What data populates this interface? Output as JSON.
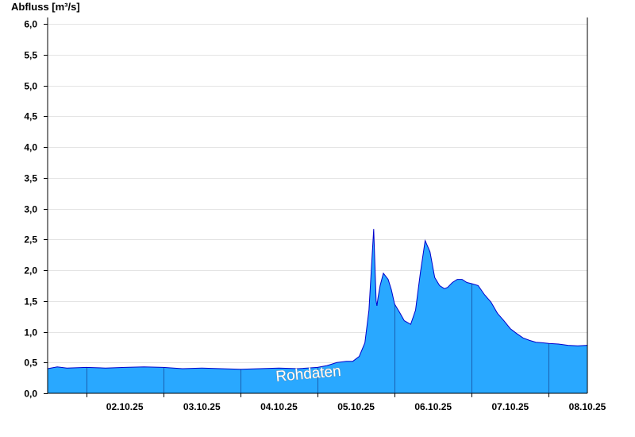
{
  "chart_data": {
    "type": "area",
    "ylabel": "Abfluss [m³/s]",
    "xlabel": "",
    "ylim": [
      0,
      6.0
    ],
    "yticks": [
      "0,0",
      "0,5",
      "1,0",
      "1,5",
      "2,0",
      "2,5",
      "3,0",
      "3,5",
      "4,0",
      "4,5",
      "5,0",
      "5,5",
      "6,0"
    ],
    "ytick_values": [
      0,
      0.5,
      1.0,
      1.5,
      2.0,
      2.5,
      3.0,
      3.5,
      4.0,
      4.5,
      5.0,
      5.5,
      6.0
    ],
    "xlim": [
      "2025-10-01T12:00",
      "2025-10-08T12:00"
    ],
    "xticks": [
      "02.10.25",
      "03.10.25",
      "04.10.25",
      "05.10.25",
      "06.10.25",
      "07.10.25",
      "08.10.25"
    ],
    "xtick_values": [
      "2025-10-02T12:00",
      "2025-10-03T12:00",
      "2025-10-04T12:00",
      "2025-10-05T12:00",
      "2025-10-06T12:00",
      "2025-10-07T12:00",
      "2025-10-08T12:00"
    ],
    "day_boundaries": [
      "2025-10-02T00:00",
      "2025-10-03T00:00",
      "2025-10-04T00:00",
      "2025-10-05T00:00",
      "2025-10-06T00:00",
      "2025-10-07T00:00",
      "2025-10-08T00:00"
    ],
    "grid": "horizontal",
    "fill_color": "#29a8ff",
    "line_color": "#0000cc",
    "watermark": "Rohdaten",
    "series": [
      {
        "x": [
          "2025-10-01T12:00",
          "2025-10-01T15:00",
          "2025-10-01T18:00",
          "2025-10-02T00:00",
          "2025-10-02T06:00",
          "2025-10-02T12:00",
          "2025-10-02T18:00",
          "2025-10-03T00:00",
          "2025-10-03T06:00",
          "2025-10-03T12:00",
          "2025-10-03T18:00",
          "2025-10-04T00:00",
          "2025-10-04T06:00",
          "2025-10-04T12:00",
          "2025-10-04T18:00",
          "2025-10-05T00:00",
          "2025-10-05T03:00",
          "2025-10-05T06:00",
          "2025-10-05T09:00",
          "2025-10-05T11:00",
          "2025-10-05T13:00",
          "2025-10-05T14:45",
          "2025-10-05T16:00",
          "2025-10-05T17:30",
          "2025-10-05T18:15",
          "2025-10-05T18:30",
          "2025-10-05T18:50",
          "2025-10-05T19:30",
          "2025-10-05T20:30",
          "2025-10-05T22:00",
          "2025-10-05T23:00",
          "2025-10-06T00:00",
          "2025-10-06T01:30",
          "2025-10-06T03:00",
          "2025-10-06T05:00",
          "2025-10-06T06:30",
          "2025-10-06T08:00",
          "2025-10-06T09:30",
          "2025-10-06T11:00",
          "2025-10-06T12:30",
          "2025-10-06T14:00",
          "2025-10-06T15:30",
          "2025-10-06T16:30",
          "2025-10-06T18:00",
          "2025-10-06T19:30",
          "2025-10-06T21:00",
          "2025-10-06T22:30",
          "2025-10-07T00:00",
          "2025-10-07T02:00",
          "2025-10-07T04:00",
          "2025-10-07T06:00",
          "2025-10-07T08:00",
          "2025-10-07T10:00",
          "2025-10-07T12:00",
          "2025-10-07T14:00",
          "2025-10-07T16:00",
          "2025-10-07T18:00",
          "2025-10-07T20:00",
          "2025-10-07T22:00",
          "2025-10-08T00:00",
          "2025-10-08T03:00",
          "2025-10-08T06:00",
          "2025-10-08T09:00",
          "2025-10-08T12:00"
        ],
        "y": [
          0.4,
          0.43,
          0.41,
          0.42,
          0.41,
          0.42,
          0.43,
          0.42,
          0.4,
          0.41,
          0.4,
          0.39,
          0.4,
          0.41,
          0.4,
          0.42,
          0.45,
          0.5,
          0.52,
          0.52,
          0.6,
          0.82,
          1.35,
          2.67,
          1.5,
          1.42,
          1.55,
          1.75,
          1.95,
          1.85,
          1.68,
          1.45,
          1.32,
          1.18,
          1.12,
          1.35,
          1.95,
          2.48,
          2.3,
          1.88,
          1.75,
          1.7,
          1.72,
          1.8,
          1.85,
          1.85,
          1.8,
          1.78,
          1.75,
          1.6,
          1.48,
          1.3,
          1.18,
          1.05,
          0.97,
          0.9,
          0.86,
          0.83,
          0.82,
          0.81,
          0.8,
          0.78,
          0.77,
          0.78
        ]
      }
    ]
  }
}
